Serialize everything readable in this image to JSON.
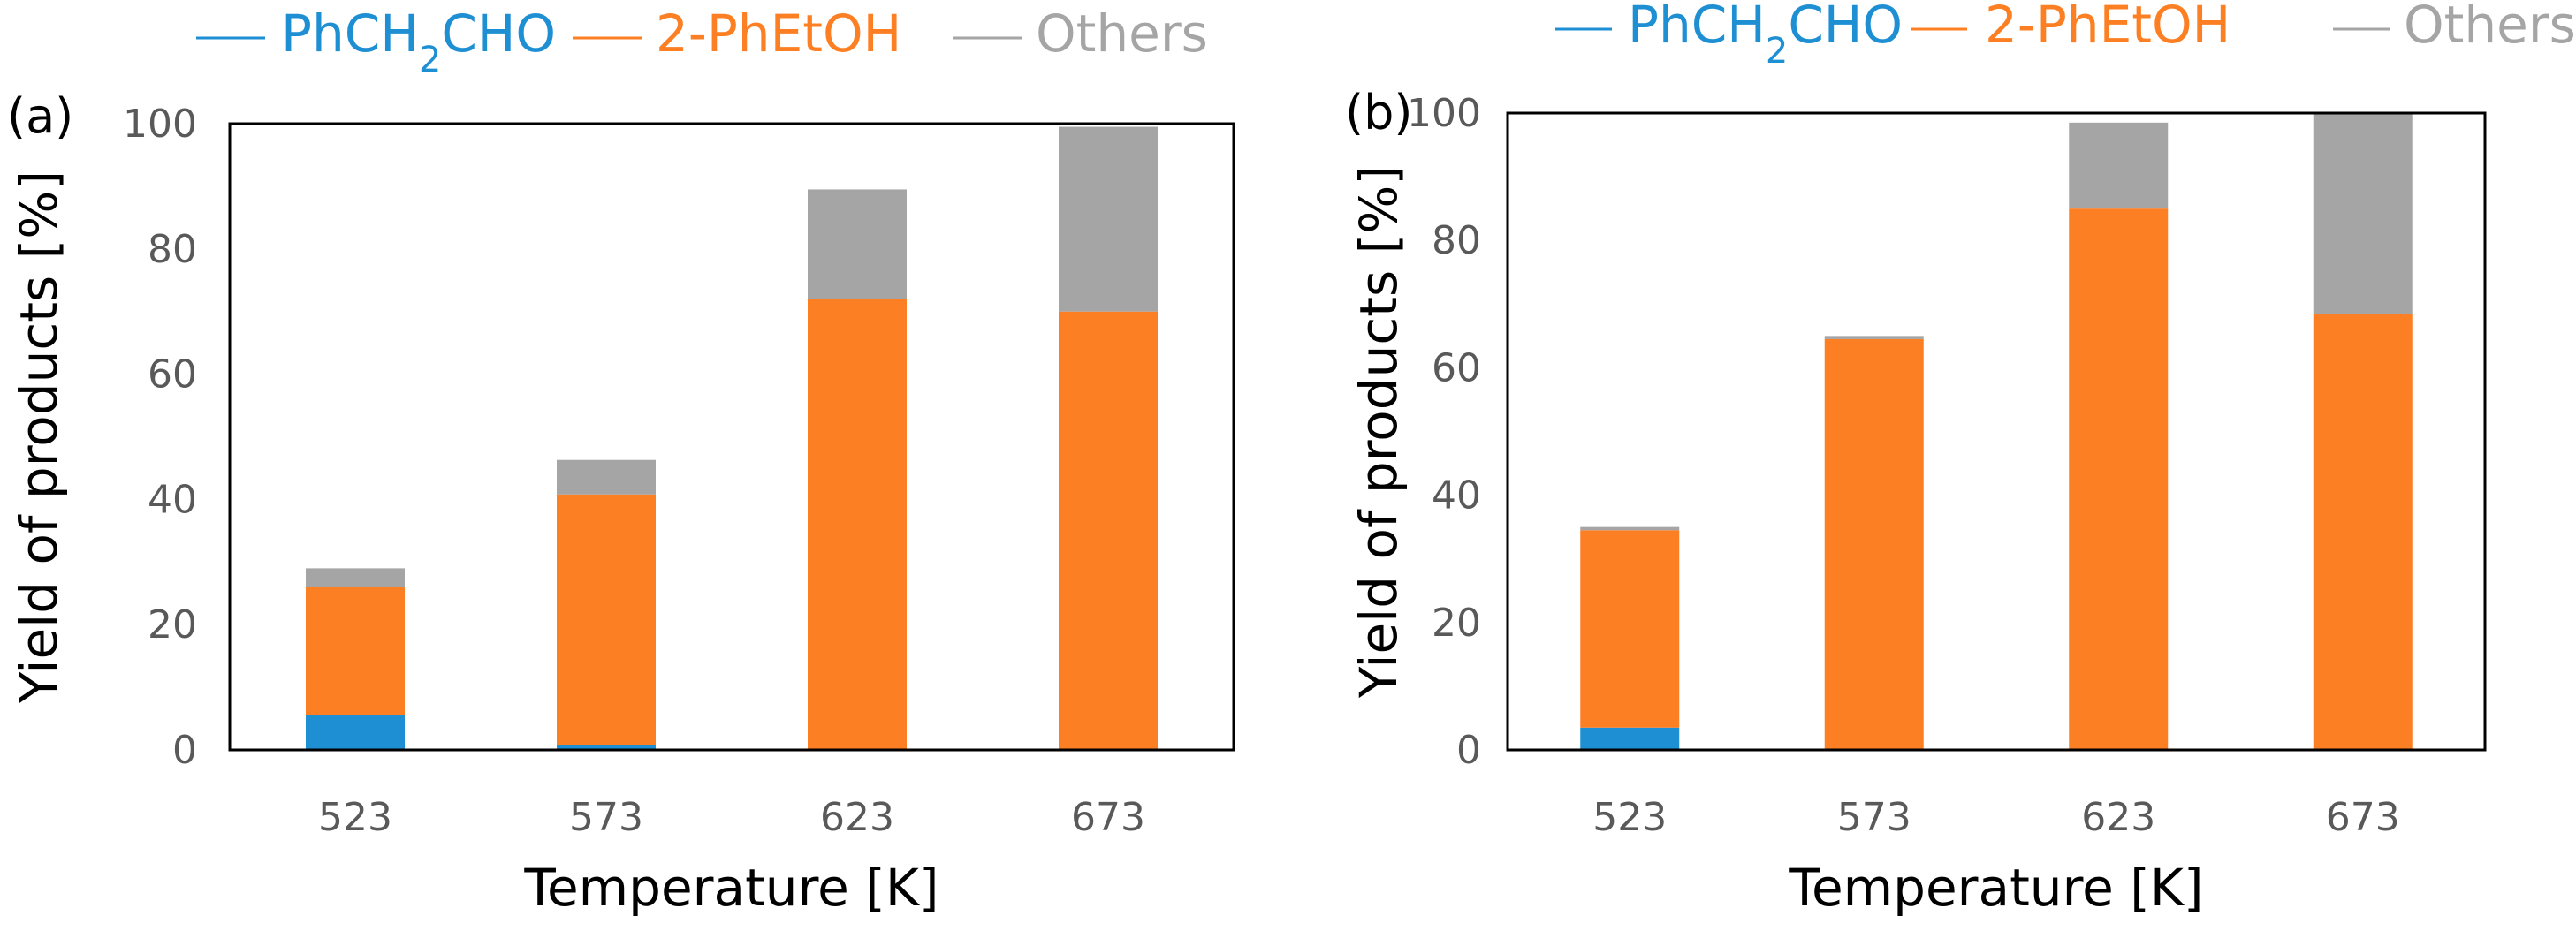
{
  "colors": {
    "PhCH2CHO": "#1f8fd4",
    "2-PhEtOH": "#fd7f23",
    "Others": "#a5a5a5",
    "axis": "#000000",
    "tick_text": "#595959"
  },
  "chart_data": [
    {
      "type": "bar",
      "stacked": true,
      "panel_label": "(a)",
      "title": "",
      "xlabel": "Temperature [K]",
      "ylabel": "Yield of products [%]",
      "ylim": [
        0,
        100
      ],
      "yticks": [
        "0",
        "20",
        "40",
        "60",
        "80",
        "100"
      ],
      "categories": [
        "523",
        "573",
        "623",
        "673"
      ],
      "legend": {
        "position": "top",
        "entries": [
          "PhCH2CHO",
          "2-PhEtOH",
          "Others"
        ]
      },
      "series": [
        {
          "name": "PhCH2CHO",
          "values": [
            5.5,
            0.8,
            0,
            0
          ]
        },
        {
          "name": "2-PhEtOH",
          "values": [
            20.5,
            40.0,
            72.0,
            70.0
          ]
        },
        {
          "name": "Others",
          "values": [
            3.0,
            5.5,
            17.5,
            29.5
          ]
        }
      ]
    },
    {
      "type": "bar",
      "stacked": true,
      "panel_label": "(b)",
      "title": "",
      "xlabel": "Temperature [K]",
      "ylabel": "Yield of products [%]",
      "ylim": [
        0,
        100
      ],
      "yticks": [
        "0",
        "20",
        "40",
        "60",
        "80",
        "100"
      ],
      "categories": [
        "523",
        "573",
        "623",
        "673"
      ],
      "legend": {
        "position": "top",
        "entries": [
          "PhCH2CHO",
          "2-PhEtOH",
          "Others"
        ]
      },
      "series": [
        {
          "name": "PhCH2CHO",
          "values": [
            3.5,
            0,
            0,
            0
          ]
        },
        {
          "name": "2-PhEtOH",
          "values": [
            31.0,
            64.5,
            85.0,
            68.5
          ]
        },
        {
          "name": "Others",
          "values": [
            0.5,
            0.5,
            13.5,
            31.5
          ]
        }
      ]
    }
  ]
}
